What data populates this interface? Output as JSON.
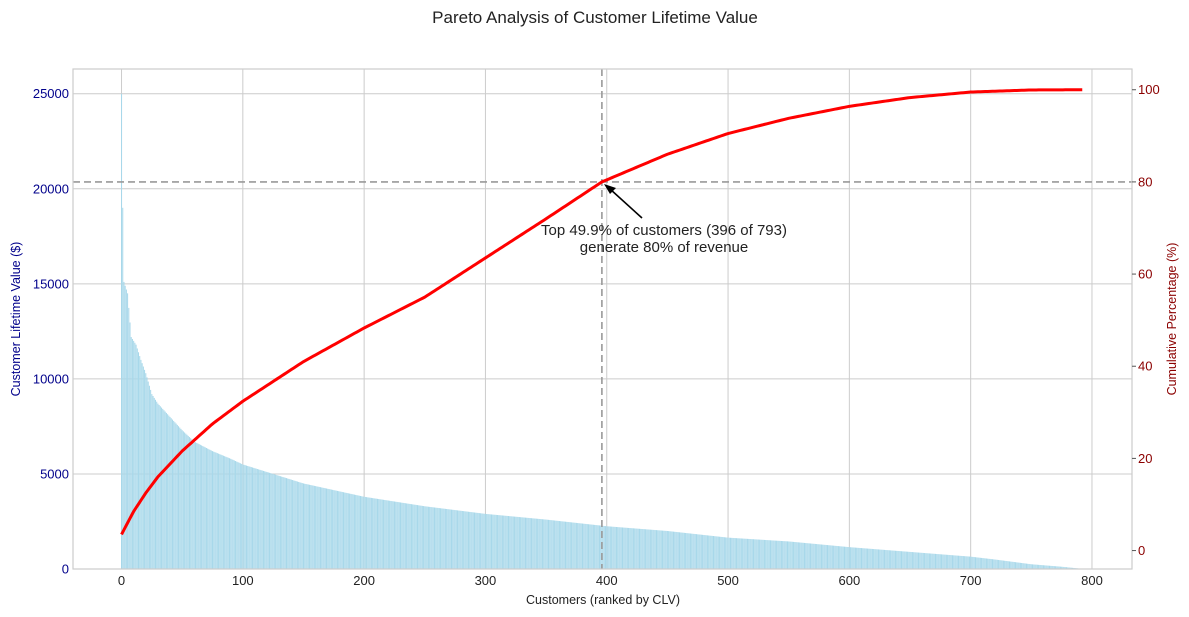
{
  "chart_data": {
    "type": "bar",
    "title": "Pareto Analysis of Customer Lifetime Value",
    "xlabel": "Customers (ranked by CLV)",
    "ylabel": "Customer Lifetime Value ($)",
    "y2label": "Cumulative Percentage (%)",
    "xlim": [
      -40,
      833
    ],
    "ylim": [
      0,
      26300
    ],
    "y2lim": [
      -4,
      104.5
    ],
    "xticks": [
      0,
      100,
      200,
      300,
      400,
      500,
      600,
      700,
      800
    ],
    "yticks": [
      0,
      5000,
      10000,
      15000,
      20000,
      25000
    ],
    "y2ticks": [
      0,
      20,
      40,
      60,
      80,
      100
    ],
    "grid": true,
    "n_customers": 793,
    "threshold_pct": 80,
    "threshold_index": 396,
    "colors": {
      "bars": "#a8d8ea",
      "cumulative_line": "#ff0000",
      "threshold_lines": "#999999",
      "left_axis": "#00008b",
      "right_axis": "#8b0000",
      "grid": "#cccccc",
      "spine": "#cccccc"
    },
    "annotation": {
      "line1": "Top 49.9% of customers (396 of 793)",
      "line2": "generate 80% of revenue"
    },
    "clv_profile": [
      [
        0,
        25000
      ],
      [
        1,
        19000
      ],
      [
        2,
        15100
      ],
      [
        5,
        14500
      ],
      [
        8,
        12200
      ],
      [
        12,
        11800
      ],
      [
        16,
        11000
      ],
      [
        20,
        10300
      ],
      [
        25,
        9200
      ],
      [
        30,
        8700
      ],
      [
        40,
        8000
      ],
      [
        50,
        7300
      ],
      [
        60,
        6700
      ],
      [
        75,
        6200
      ],
      [
        90,
        5800
      ],
      [
        100,
        5500
      ],
      [
        120,
        5100
      ],
      [
        150,
        4500
      ],
      [
        200,
        3800
      ],
      [
        250,
        3300
      ],
      [
        300,
        2900
      ],
      [
        350,
        2600
      ],
      [
        400,
        2250
      ],
      [
        450,
        2000
      ],
      [
        500,
        1650
      ],
      [
        550,
        1450
      ],
      [
        600,
        1150
      ],
      [
        650,
        900
      ],
      [
        700,
        650
      ],
      [
        720,
        500
      ],
      [
        750,
        250
      ],
      [
        775,
        120
      ],
      [
        792,
        10
      ]
    ],
    "cumulative_profile": [
      [
        0,
        3.5
      ],
      [
        10,
        8.5
      ],
      [
        20,
        12.5
      ],
      [
        30,
        16
      ],
      [
        50,
        21.6
      ],
      [
        75,
        27.5
      ],
      [
        100,
        32.4
      ],
      [
        150,
        41
      ],
      [
        200,
        48.3
      ],
      [
        250,
        55
      ],
      [
        300,
        63.5
      ],
      [
        350,
        72
      ],
      [
        396,
        80
      ],
      [
        450,
        86
      ],
      [
        500,
        90.5
      ],
      [
        550,
        93.8
      ],
      [
        600,
        96.4
      ],
      [
        650,
        98.3
      ],
      [
        700,
        99.5
      ],
      [
        750,
        99.95
      ],
      [
        792,
        100
      ]
    ]
  }
}
